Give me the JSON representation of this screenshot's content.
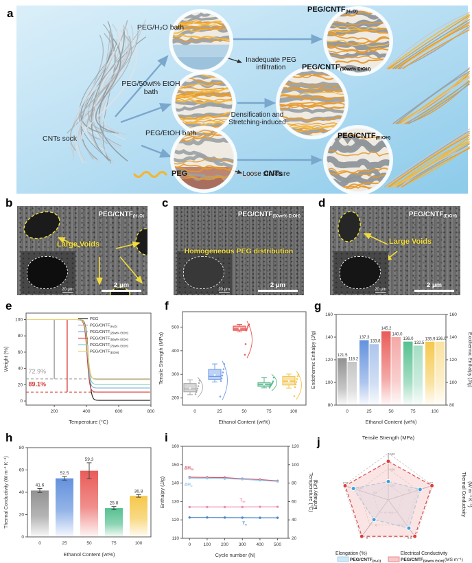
{
  "panels": {
    "a": {
      "label": "a",
      "sock_label": "CNTs sock",
      "legend": [
        {
          "label": "PEG",
          "color": "#f2b632"
        },
        {
          "label": "CNTs",
          "color": "#c4c9cc"
        }
      ],
      "rows": [
        {
          "bath": "PEG/H₂O bath",
          "annotation": "Inadequate PEG infiltration",
          "product_base": "PEG/CNTF",
          "product_sub": "(H₂O)"
        },
        {
          "bath": "PEG/50wt% EtOH bath",
          "annotation": "Densification and Stretching-induced",
          "product_base": "PEG/CNTF",
          "product_sub": "(50wt% EtOH)"
        },
        {
          "bath": "PEG/EtOH bath",
          "annotation": "Loose structure",
          "product_base": "PEG/CNTF",
          "product_sub": "(EtOH)"
        }
      ]
    },
    "b": {
      "label": "b",
      "title_base": "PEG/CNTF",
      "title_sub": "(H₂O)",
      "annotation": "Large Voids",
      "scale_bar": "2 μm",
      "inset_scale": "20 μm"
    },
    "c": {
      "label": "c",
      "title_base": "PEG/CNTF",
      "title_sub": "(50wt% EtOH)",
      "annotation": "Homogeneous PEG distribution",
      "scale_bar": "2 μm",
      "inset_scale": "20 μm"
    },
    "d": {
      "label": "d",
      "title_base": "PEG/CNTF",
      "title_sub": "(EtOH)",
      "annotation": "Large Voids",
      "scale_bar": "2 μm",
      "inset_scale": "20 μm"
    },
    "e": {
      "label": "e"
    },
    "f": {
      "label": "f"
    },
    "g": {
      "label": "g"
    },
    "h": {
      "label": "h"
    },
    "i": {
      "label": "i"
    },
    "j": {
      "label": "j"
    }
  },
  "chart_data": [
    {
      "id": "e",
      "type": "line",
      "xlabel": "Temperature (°C)",
      "ylabel": "Weight (%)",
      "xlim": [
        25,
        800
      ],
      "ylim": [
        -5,
        108
      ],
      "xticks": [
        200,
        400,
        600,
        800
      ],
      "yticks": [
        0,
        20,
        40,
        60,
        80,
        100
      ],
      "series": [
        {
          "name_base": "PEG",
          "name_sub": "",
          "color": "#1a1a1a",
          "residual": 0.8,
          "center": 413
        },
        {
          "name_base": "PEG/CNTF",
          "name_sub": "(H₂O)",
          "color": "#a8a8a8",
          "residual": 27.1,
          "center": 403
        },
        {
          "name_base": "PEG/CNTF",
          "name_sub": "(25wt% EtOH)",
          "color": "#7ab0e0",
          "residual": 16.0,
          "center": 405
        },
        {
          "name_base": "PEG/CNTF",
          "name_sub": "(50wt% EtOH)",
          "color": "#d93a34",
          "residual": 10.9,
          "center": 404
        },
        {
          "name_base": "PEG/CNTF",
          "name_sub": "(75wt% EtOH)",
          "color": "#7fcfc0",
          "residual": 20.5,
          "center": 406
        },
        {
          "name_base": "PEG/CNTF",
          "name_sub": "(EtOH)",
          "color": "#eed06a",
          "residual": 26.2,
          "center": 408
        }
      ],
      "annotations": [
        {
          "text": "72.9%",
          "color": "#999999",
          "x": 200,
          "y_line": 27.1,
          "text_x": 40,
          "text_y": 34,
          "bold": false
        },
        {
          "text": "89.1%",
          "color": "#d93a34",
          "x": 280,
          "y_line": 10.9,
          "text_x": 40,
          "text_y": 18,
          "bold": true
        }
      ]
    },
    {
      "id": "f",
      "type": "box",
      "xlabel": "Ethanol Content (wt%)",
      "ylabel": "Tensile Strength (MPa)",
      "categories": [
        "0",
        "25",
        "50",
        "75",
        "100"
      ],
      "ylim": [
        170,
        565
      ],
      "yticks": [
        200,
        300,
        400,
        500
      ],
      "boxes": [
        {
          "color": "#a8a8a8",
          "low": 214,
          "q1": 226,
          "med": 238,
          "q3": 261,
          "high": 277,
          "mean": 241,
          "points": [
            216,
            225,
            232,
            240,
            250,
            263,
            274
          ]
        },
        {
          "color": "#6f9ceb",
          "low": 268,
          "q1": 279,
          "med": 291,
          "q3": 321,
          "high": 344,
          "mean": 297,
          "points": [
            206,
            272,
            283,
            295,
            308,
            322,
            343
          ]
        },
        {
          "color": "#e8534f",
          "low": 480,
          "q1": 486,
          "med": 492,
          "q3": 504,
          "high": 511,
          "mean": 494,
          "points": [
            383,
            428,
            486,
            492,
            500,
            507,
            511
          ]
        },
        {
          "color": "#53b98a",
          "low": 243,
          "q1": 250,
          "med": 257,
          "q3": 265,
          "high": 287,
          "mean": 258,
          "points": [
            244,
            250,
            255,
            259,
            264,
            270,
            286
          ]
        },
        {
          "color": "#f2c245",
          "low": 242,
          "q1": 255,
          "med": 271,
          "q3": 291,
          "high": 301,
          "mean": 272,
          "points": [
            208,
            246,
            258,
            268,
            280,
            292,
            300
          ]
        }
      ]
    },
    {
      "id": "g",
      "type": "pairbar",
      "xlabel": "Ethanol Content (wt%)",
      "ylabel_left": "Endothermic Enthalpy (J/g)",
      "ylabel_right": "Exothermic Enthalpy (J/g)",
      "ylim": [
        80,
        160
      ],
      "yticks": [
        80,
        100,
        120,
        140,
        160
      ],
      "categories": [
        "0",
        "25",
        "50",
        "75",
        "100"
      ],
      "colors": [
        "#8c8c8c",
        "#5b8cdb",
        "#e8534f",
        "#4dbd8a",
        "#f5c542"
      ],
      "endo": [
        121.5,
        137.3,
        145.2,
        136.0,
        135.9
      ],
      "exo": [
        118.2,
        133.8,
        140.0,
        132.5,
        136.0
      ]
    },
    {
      "id": "h",
      "type": "bar",
      "xlabel": "Ethanol Content (wt%)",
      "ylabel": "Thermal Conductivity (W m⁻¹ K⁻¹)",
      "ylim": [
        0,
        80
      ],
      "yticks": [
        0,
        20,
        40,
        60,
        80
      ],
      "categories": [
        "0",
        "25",
        "50",
        "75",
        "100"
      ],
      "values": [
        41.6,
        52.5,
        59.3,
        25.8,
        36.8
      ],
      "errors": [
        1.8,
        1.6,
        7.2,
        1.5,
        1.2
      ],
      "colors": [
        "#8c8c8c",
        "#5b8cdb",
        "#e8534f",
        "#4dbd8a",
        "#f5c542"
      ]
    },
    {
      "id": "i",
      "type": "multiline",
      "xlabel": "Cycle number (N)",
      "ylabel_left": "Enthalpy (J/g)",
      "ylabel_right": "Temperature (°C)",
      "xlim": [
        -40,
        560
      ],
      "xticks": [
        0,
        100,
        200,
        300,
        400,
        500
      ],
      "ylim_left": [
        110,
        160
      ],
      "yticks_left": [
        110,
        120,
        130,
        140,
        150,
        160
      ],
      "ylim_right": [
        20,
        120
      ],
      "yticks_right": [
        20,
        40,
        60,
        80,
        100,
        120
      ],
      "x": [
        0,
        100,
        200,
        300,
        400,
        500
      ],
      "series": [
        {
          "base": "ΔH",
          "sub": "m",
          "axis": "left",
          "color": "#d4566e",
          "values": [
            143.2,
            143.1,
            143.0,
            142.4,
            141.9,
            141.2
          ],
          "lx": -30,
          "ly": 147.5
        },
        {
          "base": "ΔH",
          "sub": "c",
          "axis": "left",
          "color": "#8ec6e8",
          "values": [
            142.7,
            142.6,
            142.4,
            142.1,
            141.5,
            140.9
          ],
          "lx": -30,
          "ly": 138.5
        },
        {
          "base": "T",
          "sub": "m",
          "axis": "right",
          "color": "#ef8ab5",
          "values": [
            54,
            54,
            54,
            54,
            54.2,
            54.2
          ],
          "lx": 285,
          "ly": 60
        },
        {
          "base": "T",
          "sub": "c",
          "axis": "right",
          "color": "#4a86c8",
          "values": [
            42.6,
            42.6,
            42.5,
            42.4,
            42.3,
            42.3
          ],
          "lx": 300,
          "ly": 35
        }
      ]
    },
    {
      "id": "j",
      "type": "radar",
      "axes": [
        {
          "label_lines": [
            "Tensile Strength (MPa)"
          ],
          "max": 600,
          "ticks": [
            200,
            400,
            600
          ]
        },
        {
          "label_lines": [
            "Thermal Conductivity",
            "(W m⁻¹ K⁻¹)"
          ],
          "max": 60,
          "ticks": [
            30,
            60
          ]
        },
        {
          "label_lines": [
            "Electrical Conductivity",
            "(MS m⁻¹)"
          ],
          "max": 0.6,
          "ticks": [
            0.2,
            0.4,
            0.6
          ]
        },
        {
          "label_lines": [
            "Elongation (%)"
          ],
          "max": 9,
          "ticks": [
            3,
            6,
            9
          ]
        },
        {
          "label_lines": [
            "Enthalpy (J/g)"
          ],
          "max": 150,
          "ticks": [
            50,
            100,
            150
          ]
        }
      ],
      "series": [
        {
          "name_base": "PEG/CNTF",
          "name_sub": "(H₂O)",
          "color": "#7fc4e8",
          "fill": "#cfe8f6",
          "dot": "#3aa0d8",
          "values": [
            235,
            43,
            0.45,
            4.7,
            118
          ]
        },
        {
          "name_base": "PEG/CNTF",
          "name_sub": "(50wt% EtOH)",
          "color": "#e05252",
          "fill": "#f6caca",
          "dot": "#e03b3b",
          "values": [
            495,
            59,
            0.58,
            8.7,
            146
          ]
        }
      ]
    }
  ]
}
